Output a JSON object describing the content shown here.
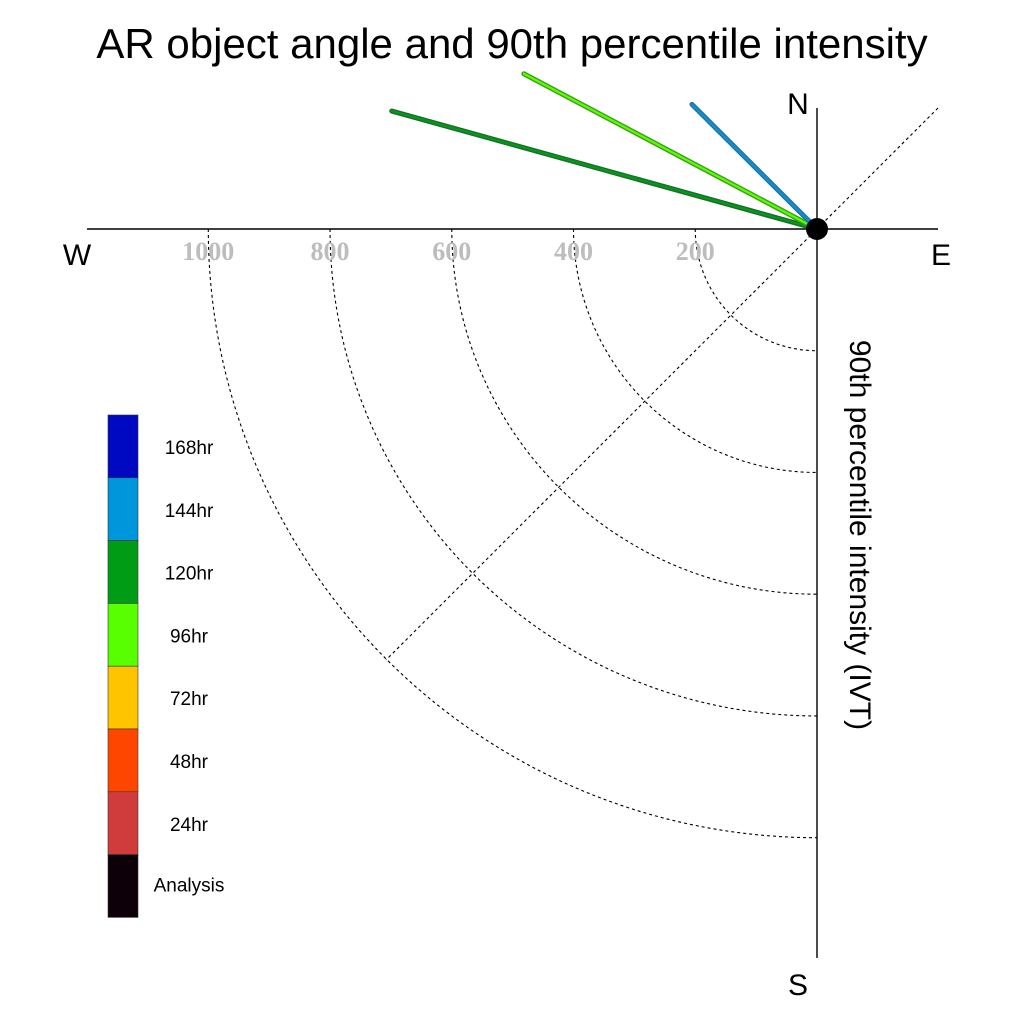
{
  "chart_data": {
    "type": "polar-quadrant",
    "title": "AR object angle and 90th percentile intensity",
    "radial_label": "90th percentile intensity (IVT)",
    "directions": {
      "north": "N",
      "south": "S",
      "east": "E",
      "west": "W"
    },
    "radial_ticks": [
      {
        "value": 200,
        "label": "200"
      },
      {
        "value": 400,
        "label": "400"
      },
      {
        "value": 600,
        "label": "600"
      },
      {
        "value": 800,
        "label": "800"
      },
      {
        "value": 1000,
        "label": "1000"
      }
    ],
    "rmax": 1200,
    "legend": [
      {
        "label": "168hr",
        "color": "#0009c2"
      },
      {
        "label": "144hr",
        "color": "#0096dc"
      },
      {
        "label": "120hr",
        "color": "#009c15"
      },
      {
        "label": "96hr",
        "color": "#57ff00"
      },
      {
        "label": "72hr",
        "color": "#ffc400"
      },
      {
        "label": "48hr",
        "color": "#ff4600"
      },
      {
        "label": "24hr",
        "color": "#d03b3b"
      },
      {
        "label": "Analysis",
        "color": "#0d0008"
      }
    ],
    "series": [
      {
        "name": "120hr",
        "color": "#009c15",
        "outline": "#1e6b2e",
        "angle_deg_from_north": -74.5,
        "intensity": 725
      },
      {
        "name": "96hr",
        "color": "#57ff00",
        "outline": "#3f9f1c",
        "angle_deg_from_north": -62.1,
        "intensity": 545
      },
      {
        "name": "144hr",
        "color": "#0096dc",
        "outline": "#2f6f98",
        "angle_deg_from_north": -45.1,
        "intensity": 290
      }
    ],
    "center_marker": "Analysis"
  }
}
